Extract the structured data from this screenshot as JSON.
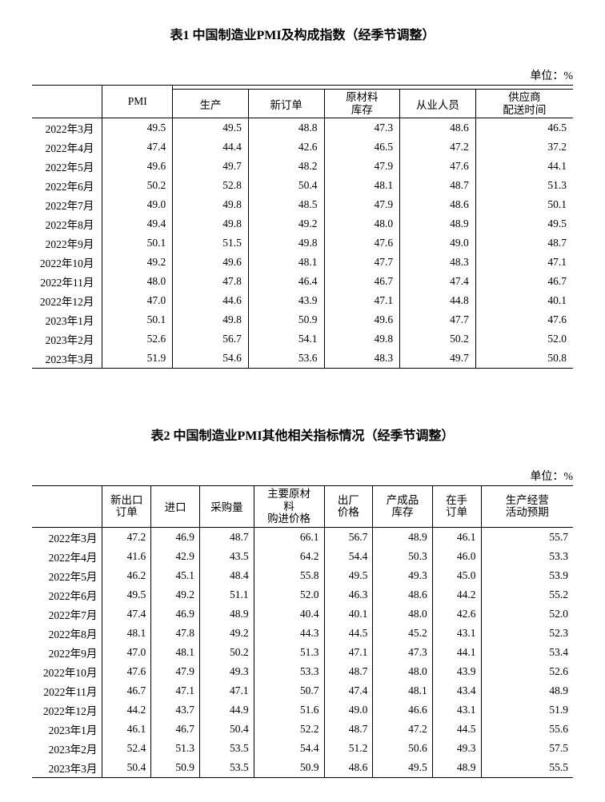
{
  "table1": {
    "title": "表1 中国制造业PMI及构成指数（经季节调整）",
    "unit": "单位：%",
    "headers": {
      "month": "",
      "pmi": "PMI",
      "prod": "生产",
      "neworders": "新订单",
      "rawinv": "原材料\n库存",
      "employ": "从业人员",
      "supplier": "供应商\n配送时间"
    },
    "rows": [
      {
        "m": "2022年3月",
        "v": [
          "49.5",
          "49.5",
          "48.8",
          "47.3",
          "48.6",
          "46.5"
        ]
      },
      {
        "m": "2022年4月",
        "v": [
          "47.4",
          "44.4",
          "42.6",
          "46.5",
          "47.2",
          "37.2"
        ]
      },
      {
        "m": "2022年5月",
        "v": [
          "49.6",
          "49.7",
          "48.2",
          "47.9",
          "47.6",
          "44.1"
        ]
      },
      {
        "m": "2022年6月",
        "v": [
          "50.2",
          "52.8",
          "50.4",
          "48.1",
          "48.7",
          "51.3"
        ]
      },
      {
        "m": "2022年7月",
        "v": [
          "49.0",
          "49.8",
          "48.5",
          "47.9",
          "48.6",
          "50.1"
        ]
      },
      {
        "m": "2022年8月",
        "v": [
          "49.4",
          "49.8",
          "49.2",
          "48.0",
          "48.9",
          "49.5"
        ]
      },
      {
        "m": "2022年9月",
        "v": [
          "50.1",
          "51.5",
          "49.8",
          "47.6",
          "49.0",
          "48.7"
        ]
      },
      {
        "m": "2022年10月",
        "v": [
          "49.2",
          "49.6",
          "48.1",
          "47.7",
          "48.3",
          "47.1"
        ]
      },
      {
        "m": "2022年11月",
        "v": [
          "48.0",
          "47.8",
          "46.4",
          "46.7",
          "47.4",
          "46.7"
        ]
      },
      {
        "m": "2022年12月",
        "v": [
          "47.0",
          "44.6",
          "43.9",
          "47.1",
          "44.8",
          "40.1"
        ]
      },
      {
        "m": "2023年1月",
        "v": [
          "50.1",
          "49.8",
          "50.9",
          "49.6",
          "47.7",
          "47.6"
        ]
      },
      {
        "m": "2023年2月",
        "v": [
          "52.6",
          "56.7",
          "54.1",
          "49.8",
          "50.2",
          "52.0"
        ]
      },
      {
        "m": "2023年3月",
        "v": [
          "51.9",
          "54.6",
          "53.6",
          "48.3",
          "49.7",
          "50.8"
        ]
      }
    ]
  },
  "table2": {
    "title": "表2 中国制造业PMI其他相关指标情况（经季节调整）",
    "unit": "单位：%",
    "headers": {
      "month": "",
      "c1": "新出口\n订单",
      "c2": "进口",
      "c3": "采购量",
      "c4": "主要原材\n料\n购进价格",
      "c5": "出厂\n价格",
      "c6": "产成品\n库存",
      "c7": "在手\n订单",
      "c8": "生产经营\n活动预期"
    },
    "rows": [
      {
        "m": "2022年3月",
        "v": [
          "47.2",
          "46.9",
          "48.7",
          "66.1",
          "56.7",
          "48.9",
          "46.1",
          "55.7"
        ]
      },
      {
        "m": "2022年4月",
        "v": [
          "41.6",
          "42.9",
          "43.5",
          "64.2",
          "54.4",
          "50.3",
          "46.0",
          "53.3"
        ]
      },
      {
        "m": "2022年5月",
        "v": [
          "46.2",
          "45.1",
          "48.4",
          "55.8",
          "49.5",
          "49.3",
          "45.0",
          "53.9"
        ]
      },
      {
        "m": "2022年6月",
        "v": [
          "49.5",
          "49.2",
          "51.1",
          "52.0",
          "46.3",
          "48.6",
          "44.2",
          "55.2"
        ]
      },
      {
        "m": "2022年7月",
        "v": [
          "47.4",
          "46.9",
          "48.9",
          "40.4",
          "40.1",
          "48.0",
          "42.6",
          "52.0"
        ]
      },
      {
        "m": "2022年8月",
        "v": [
          "48.1",
          "47.8",
          "49.2",
          "44.3",
          "44.5",
          "45.2",
          "43.1",
          "52.3"
        ]
      },
      {
        "m": "2022年9月",
        "v": [
          "47.0",
          "48.1",
          "50.2",
          "51.3",
          "47.1",
          "47.3",
          "44.1",
          "53.4"
        ]
      },
      {
        "m": "2022年10月",
        "v": [
          "47.6",
          "47.9",
          "49.3",
          "53.3",
          "48.7",
          "48.0",
          "43.9",
          "52.6"
        ]
      },
      {
        "m": "2022年11月",
        "v": [
          "46.7",
          "47.1",
          "47.1",
          "50.7",
          "47.4",
          "48.1",
          "43.4",
          "48.9"
        ]
      },
      {
        "m": "2022年12月",
        "v": [
          "44.2",
          "43.7",
          "44.9",
          "51.6",
          "49.0",
          "46.6",
          "43.1",
          "51.9"
        ]
      },
      {
        "m": "2023年1月",
        "v": [
          "46.1",
          "46.7",
          "50.4",
          "52.2",
          "48.7",
          "47.2",
          "44.5",
          "55.6"
        ]
      },
      {
        "m": "2023年2月",
        "v": [
          "52.4",
          "51.3",
          "53.5",
          "54.4",
          "51.2",
          "50.6",
          "49.3",
          "57.5"
        ]
      },
      {
        "m": "2023年3月",
        "v": [
          "50.4",
          "50.9",
          "53.5",
          "50.9",
          "48.6",
          "49.5",
          "48.9",
          "55.5"
        ]
      }
    ]
  }
}
